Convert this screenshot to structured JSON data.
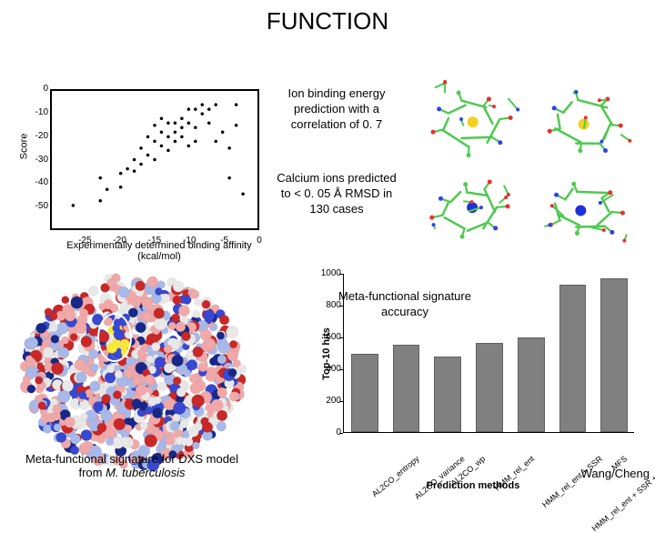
{
  "title": "FUNCTION",
  "scatter": {
    "ylabel": "Score",
    "xlabel": "Experimentally determined binding affinity (kcal/mol)",
    "xlim": [
      -30,
      0
    ],
    "ylim": [
      -60,
      0
    ],
    "xticks": [
      -25,
      -20,
      -15,
      -10,
      -5,
      0
    ],
    "yticks": [
      0,
      -10,
      -20,
      -30,
      -40,
      -50
    ],
    "points": [
      [
        -27,
        -50
      ],
      [
        -23,
        -48
      ],
      [
        -23,
        -38
      ],
      [
        -22,
        -43
      ],
      [
        -20,
        -42
      ],
      [
        -20,
        -36
      ],
      [
        -19,
        -34
      ],
      [
        -18,
        -35
      ],
      [
        -18,
        -30
      ],
      [
        -17,
        -25
      ],
      [
        -17,
        -32
      ],
      [
        -16,
        -20
      ],
      [
        -16,
        -28
      ],
      [
        -15,
        -22
      ],
      [
        -15,
        -30
      ],
      [
        -15,
        -15
      ],
      [
        -14,
        -18
      ],
      [
        -14,
        -24
      ],
      [
        -14,
        -12
      ],
      [
        -13,
        -14
      ],
      [
        -13,
        -20
      ],
      [
        -13,
        -26
      ],
      [
        -12,
        -14
      ],
      [
        -12,
        -18
      ],
      [
        -12,
        -22
      ],
      [
        -11,
        -16
      ],
      [
        -11,
        -12
      ],
      [
        -11,
        -20
      ],
      [
        -10,
        -14
      ],
      [
        -10,
        -24
      ],
      [
        -10,
        -8
      ],
      [
        -9,
        -8
      ],
      [
        -9,
        -16
      ],
      [
        -9,
        -22
      ],
      [
        -8,
        -10
      ],
      [
        -8,
        -6
      ],
      [
        -7,
        -14
      ],
      [
        -7,
        -8
      ],
      [
        -6,
        -22
      ],
      [
        -6,
        -6
      ],
      [
        -5,
        -18
      ],
      [
        -4,
        -38
      ],
      [
        -4,
        -25
      ],
      [
        -3,
        -6
      ],
      [
        -3,
        -15
      ],
      [
        -2,
        -45
      ]
    ]
  },
  "captions": {
    "ion_binding": "Ion binding energy prediction with a correlation of 0. 7",
    "calcium": "Calcium ions predicted to < 0. 05 Å RMSD in 130 cases",
    "meta_acc": "Meta-functional signature accuracy",
    "bottom_line1": "Meta-functional signature for DXS model",
    "bottom_line2_a": "from ",
    "bottom_line2_b": "M. tuberculosis"
  },
  "credit": "Wang/Cheng",
  "barchart": {
    "ylabel": "Top-10 hits",
    "xlabel": "Prediction methods",
    "ylim": [
      0,
      1000
    ],
    "ytick_step": 200,
    "yticks": [
      0,
      200,
      400,
      600,
      800,
      1000
    ],
    "categories": [
      "AL2CO_entropy",
      "AL2CO_variance",
      "AL2CO_wp",
      "HMM_rel_ent",
      "HMM_rel_ent + SSR",
      "HMM_rel_ent + SSR + AAType",
      "MFS"
    ],
    "values": [
      490,
      550,
      475,
      560,
      595,
      925,
      965
    ],
    "bar_color": "#808080"
  },
  "molecule_colors": {
    "bond": "#4fc94f",
    "carbon": "#4fc94f",
    "oxygen": "#e83030",
    "nitrogen": "#3040e8",
    "ion_yellow": "#f5d020",
    "ion_blue": "#2030d8"
  },
  "protein_colors": {
    "red": "#c82828",
    "pink": "#f0a8a8",
    "white": "#e8e8e8",
    "lightblue": "#a8b8e8",
    "blue": "#3848d0",
    "darkblue": "#182888",
    "yellow": "#f8e838"
  }
}
